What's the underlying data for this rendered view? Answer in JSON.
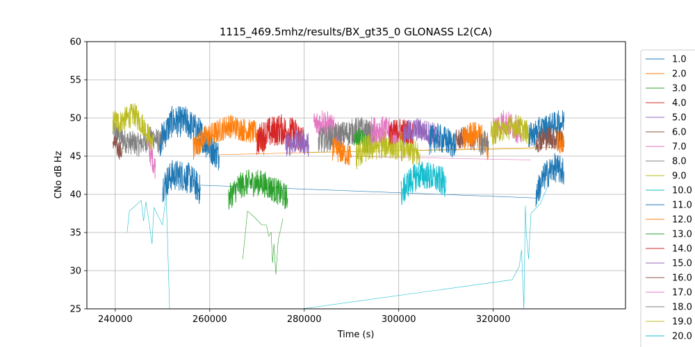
{
  "chart_data": {
    "type": "line",
    "title": "1115_469.5mhz/results/BX_gt35_0 GLONASS L2(CA)",
    "xlabel": "Time (s)",
    "ylabel": "CNo dB Hz",
    "xlim": [
      234000,
      348000
    ],
    "ylim": [
      25,
      60
    ],
    "xticks": [
      240000,
      260000,
      280000,
      300000,
      320000
    ],
    "yticks": [
      25,
      30,
      35,
      40,
      45,
      50,
      55,
      60
    ],
    "grid": true,
    "legend_position": "right",
    "legend": [
      "1.0",
      "2.0",
      "3.0",
      "4.0",
      "5.0",
      "6.0",
      "7.0",
      "8.0",
      "9.0",
      "10.0",
      "11.0",
      "12.0",
      "13.0",
      "14.0",
      "15.0",
      "16.0",
      "17.0",
      "18.0",
      "19.0",
      "20.0"
    ],
    "colors": [
      "#1f77b4",
      "#ff7f0e",
      "#2ca02c",
      "#d62728",
      "#9467bd",
      "#8c564b",
      "#e377c2",
      "#7f7f7f",
      "#bcbd22",
      "#17becf"
    ],
    "series": [
      {
        "name": "8.0",
        "color": "#7f7f7f",
        "noise": 1.0,
        "points": [
          [
            239500,
            48.5
          ],
          [
            242000,
            47
          ],
          [
            245000,
            46.5
          ],
          [
            248000,
            47.5
          ],
          [
            250000,
            46.5
          ]
        ]
      },
      {
        "name": "19.0",
        "color": "#bcbd22",
        "noise": 1.0,
        "points": [
          [
            239500,
            49.5
          ],
          [
            241000,
            49.5
          ],
          [
            244000,
            50.5
          ],
          [
            246000,
            49
          ],
          [
            248000,
            46.5
          ]
        ]
      },
      {
        "name": "6.0",
        "color": "#8c564b",
        "noise": 0.8,
        "points": [
          [
            239500,
            47
          ],
          [
            240500,
            46
          ],
          [
            241500,
            45.5
          ]
        ]
      },
      {
        "name": "7.0",
        "color": "#e377c2",
        "noise": 1.0,
        "points": [
          [
            247000,
            46
          ],
          [
            248500,
            43.5
          ]
        ]
      },
      {
        "name": "11.0",
        "color": "#1f77b4",
        "noise": 1.3,
        "points": [
          [
            249500,
            47
          ],
          [
            252000,
            49.5
          ],
          [
            255000,
            49.5
          ],
          [
            258000,
            48
          ],
          [
            259500,
            46.5
          ],
          [
            262000,
            45
          ]
        ]
      },
      {
        "name": "11.0",
        "color": "#1f77b4",
        "noise": 1.3,
        "points": [
          [
            250000,
            41
          ],
          [
            252000,
            42.5
          ],
          [
            254000,
            42.5
          ],
          [
            256000,
            42
          ],
          [
            258000,
            40.5
          ]
        ]
      },
      {
        "name": "8.0",
        "color": "#7f7f7f",
        "noise": 1.0,
        "points": [
          [
            257000,
            46.5
          ],
          [
            259000,
            47.5
          ],
          [
            260000,
            47
          ]
        ]
      },
      {
        "name": "12.0",
        "color": "#ff7f0e",
        "noise": 1.0,
        "points": [
          [
            256500,
            46
          ],
          [
            259000,
            47.5
          ],
          [
            261000,
            48
          ],
          [
            264000,
            49
          ],
          [
            267000,
            48.5
          ],
          [
            270000,
            48
          ],
          [
            271500,
            46.5
          ]
        ]
      },
      {
        "name": "13.0",
        "color": "#2ca02c",
        "noise": 1.1,
        "points": [
          [
            264000,
            39.5
          ],
          [
            266000,
            41
          ],
          [
            268000,
            41.5
          ],
          [
            271000,
            41.5
          ],
          [
            274000,
            40.5
          ],
          [
            276500,
            39.5
          ]
        ]
      },
      {
        "name": "4.0",
        "color": "#d62728",
        "noise": 1.3,
        "points": [
          [
            270000,
            47
          ],
          [
            272000,
            48
          ],
          [
            275000,
            48.5
          ],
          [
            278000,
            48
          ],
          [
            280000,
            47
          ]
        ]
      },
      {
        "name": "5.0",
        "color": "#9467bd",
        "noise": 1.0,
        "points": [
          [
            276000,
            46.5
          ],
          [
            279000,
            47
          ],
          [
            281000,
            46.5
          ]
        ]
      },
      {
        "name": "17.0",
        "color": "#e377c2",
        "noise": 1.2,
        "points": [
          [
            282000,
            49
          ],
          [
            284000,
            49.5
          ],
          [
            286000,
            48.5
          ],
          [
            288000,
            47
          ]
        ]
      },
      {
        "name": "18.0",
        "color": "#7f7f7f",
        "noise": 1.1,
        "points": [
          [
            283000,
            47
          ],
          [
            286000,
            47.5
          ],
          [
            289000,
            48
          ],
          [
            292000,
            48.5
          ],
          [
            295000,
            47.5
          ]
        ]
      },
      {
        "name": "13.0",
        "color": "#2ca02c",
        "noise": 0.8,
        "points": [
          [
            290500,
            47
          ],
          [
            292000,
            47.5
          ],
          [
            293500,
            46
          ]
        ]
      },
      {
        "name": "12.0",
        "color": "#ff7f0e",
        "noise": 1.0,
        "points": [
          [
            286000,
            46
          ],
          [
            288000,
            45.5
          ],
          [
            290000,
            45
          ]
        ]
      },
      {
        "name": "9.0",
        "color": "#bcbd22",
        "noise": 1.2,
        "points": [
          [
            291000,
            45
          ],
          [
            293000,
            46
          ],
          [
            296000,
            46.5
          ],
          [
            299000,
            46.5
          ],
          [
            302000,
            46
          ],
          [
            304500,
            45
          ]
        ]
      },
      {
        "name": "17.0",
        "color": "#e377c2",
        "noise": 1.1,
        "points": [
          [
            294000,
            48.5
          ],
          [
            297000,
            48.5
          ],
          [
            300000,
            48
          ]
        ]
      },
      {
        "name": "4.0",
        "color": "#d62728",
        "noise": 1.0,
        "points": [
          [
            298000,
            48
          ],
          [
            300500,
            48.5
          ],
          [
            303000,
            48
          ]
        ]
      },
      {
        "name": "5.0",
        "color": "#9467bd",
        "noise": 1.0,
        "points": [
          [
            301000,
            48
          ],
          [
            304000,
            48.5
          ],
          [
            307000,
            48
          ],
          [
            308500,
            47.5
          ]
        ]
      },
      {
        "name": "10.0",
        "color": "#17becf",
        "noise": 1.2,
        "points": [
          [
            300500,
            40
          ],
          [
            302000,
            41.5
          ],
          [
            304000,
            42.5
          ],
          [
            306000,
            42.5
          ],
          [
            308000,
            42
          ],
          [
            310000,
            41.5
          ]
        ]
      },
      {
        "name": "11.0",
        "color": "#1f77b4",
        "noise": 1.2,
        "points": [
          [
            306500,
            47
          ],
          [
            308000,
            47.5
          ],
          [
            310000,
            47
          ],
          [
            312000,
            46.5
          ]
        ]
      },
      {
        "name": "6.0",
        "color": "#8c564b",
        "noise": 0.9,
        "points": [
          [
            312000,
            47
          ],
          [
            314000,
            47.5
          ],
          [
            316000,
            47
          ]
        ]
      },
      {
        "name": "12.0",
        "color": "#ff7f0e",
        "noise": 1.1,
        "points": [
          [
            313500,
            47
          ],
          [
            315500,
            48
          ],
          [
            317500,
            47.5
          ],
          [
            319000,
            46
          ]
        ]
      },
      {
        "name": "17.0",
        "color": "#e377c2",
        "noise": 1.1,
        "points": [
          [
            320000,
            48.5
          ],
          [
            322000,
            49.5
          ],
          [
            324000,
            49
          ],
          [
            326000,
            48
          ]
        ]
      },
      {
        "name": "19.0",
        "color": "#bcbd22",
        "noise": 1.0,
        "points": [
          [
            319500,
            48
          ],
          [
            322000,
            48.5
          ],
          [
            325000,
            49
          ],
          [
            327500,
            48
          ]
        ]
      },
      {
        "name": "8.0",
        "color": "#7f7f7f",
        "noise": 1.0,
        "points": [
          [
            317000,
            46.5
          ],
          [
            319000,
            47
          ]
        ]
      },
      {
        "name": "11.0",
        "color": "#1f77b4",
        "noise": 1.1,
        "points": [
          [
            327500,
            47.5
          ],
          [
            330000,
            48.5
          ],
          [
            332500,
            49
          ],
          [
            335000,
            49.5
          ]
        ]
      },
      {
        "name": "16.0",
        "color": "#8c564b",
        "noise": 1.0,
        "points": [
          [
            329000,
            47
          ],
          [
            332000,
            47.5
          ],
          [
            335000,
            47
          ]
        ]
      },
      {
        "name": "12.0",
        "color": "#ff7f0e",
        "noise": 1.0,
        "points": [
          [
            333500,
            47
          ],
          [
            335000,
            46.5
          ]
        ]
      },
      {
        "name": "11.0",
        "color": "#1f77b4",
        "noise": 1.2,
        "points": [
          [
            329000,
            40
          ],
          [
            331000,
            42.5
          ],
          [
            333000,
            43.5
          ],
          [
            335000,
            43
          ]
        ]
      }
    ],
    "sparse_lines": [
      {
        "name": "10.0",
        "color": "#17becf",
        "points": [
          [
            242500,
            35
          ],
          [
            243000,
            37.8
          ],
          [
            245500,
            39.2
          ],
          [
            246000,
            36.5
          ],
          [
            246500,
            39
          ],
          [
            247000,
            37
          ],
          [
            247800,
            33.5
          ],
          [
            248200,
            38.3
          ],
          [
            250000,
            36
          ],
          [
            250800,
            40
          ],
          [
            251500,
            25
          ]
        ]
      },
      {
        "name": "3.0",
        "color": "#2ca02c",
        "points": [
          [
            267000,
            31.5
          ],
          [
            268000,
            37.8
          ],
          [
            269500,
            37
          ],
          [
            271000,
            36
          ],
          [
            272000,
            36
          ],
          [
            272500,
            34.5
          ],
          [
            273000,
            35
          ],
          [
            273300,
            31
          ],
          [
            273600,
            33.5
          ],
          [
            274000,
            29.5
          ],
          [
            274500,
            34
          ],
          [
            275500,
            36.8
          ]
        ]
      },
      {
        "name": "10.0",
        "color": "#17becf",
        "points": [
          [
            279500,
            25
          ],
          [
            324000,
            28.8
          ],
          [
            325500,
            30.5
          ],
          [
            326000,
            32.7
          ],
          [
            326500,
            25
          ],
          [
            326800,
            38.5
          ],
          [
            327000,
            35
          ],
          [
            327500,
            31.5
          ],
          [
            328000,
            37.5
          ],
          [
            330000,
            38.8
          ],
          [
            331500,
            41
          ]
        ]
      },
      {
        "name": "11.0",
        "color": "#1f77b4",
        "points": [
          [
            258000,
            41.2
          ],
          [
            330000,
            39.5
          ]
        ]
      },
      {
        "name": "12.0",
        "color": "#ff7f0e",
        "points": [
          [
            262000,
            45.2
          ],
          [
            335000,
            46.2
          ]
        ]
      },
      {
        "name": "17.0",
        "color": "#e377c2",
        "points": [
          [
            288000,
            45
          ],
          [
            328000,
            44.5
          ]
        ]
      },
      {
        "name": "9.0",
        "color": "#bcbd22",
        "points": [
          [
            280000,
            45.5
          ],
          [
            330000,
            46
          ]
        ]
      }
    ]
  }
}
